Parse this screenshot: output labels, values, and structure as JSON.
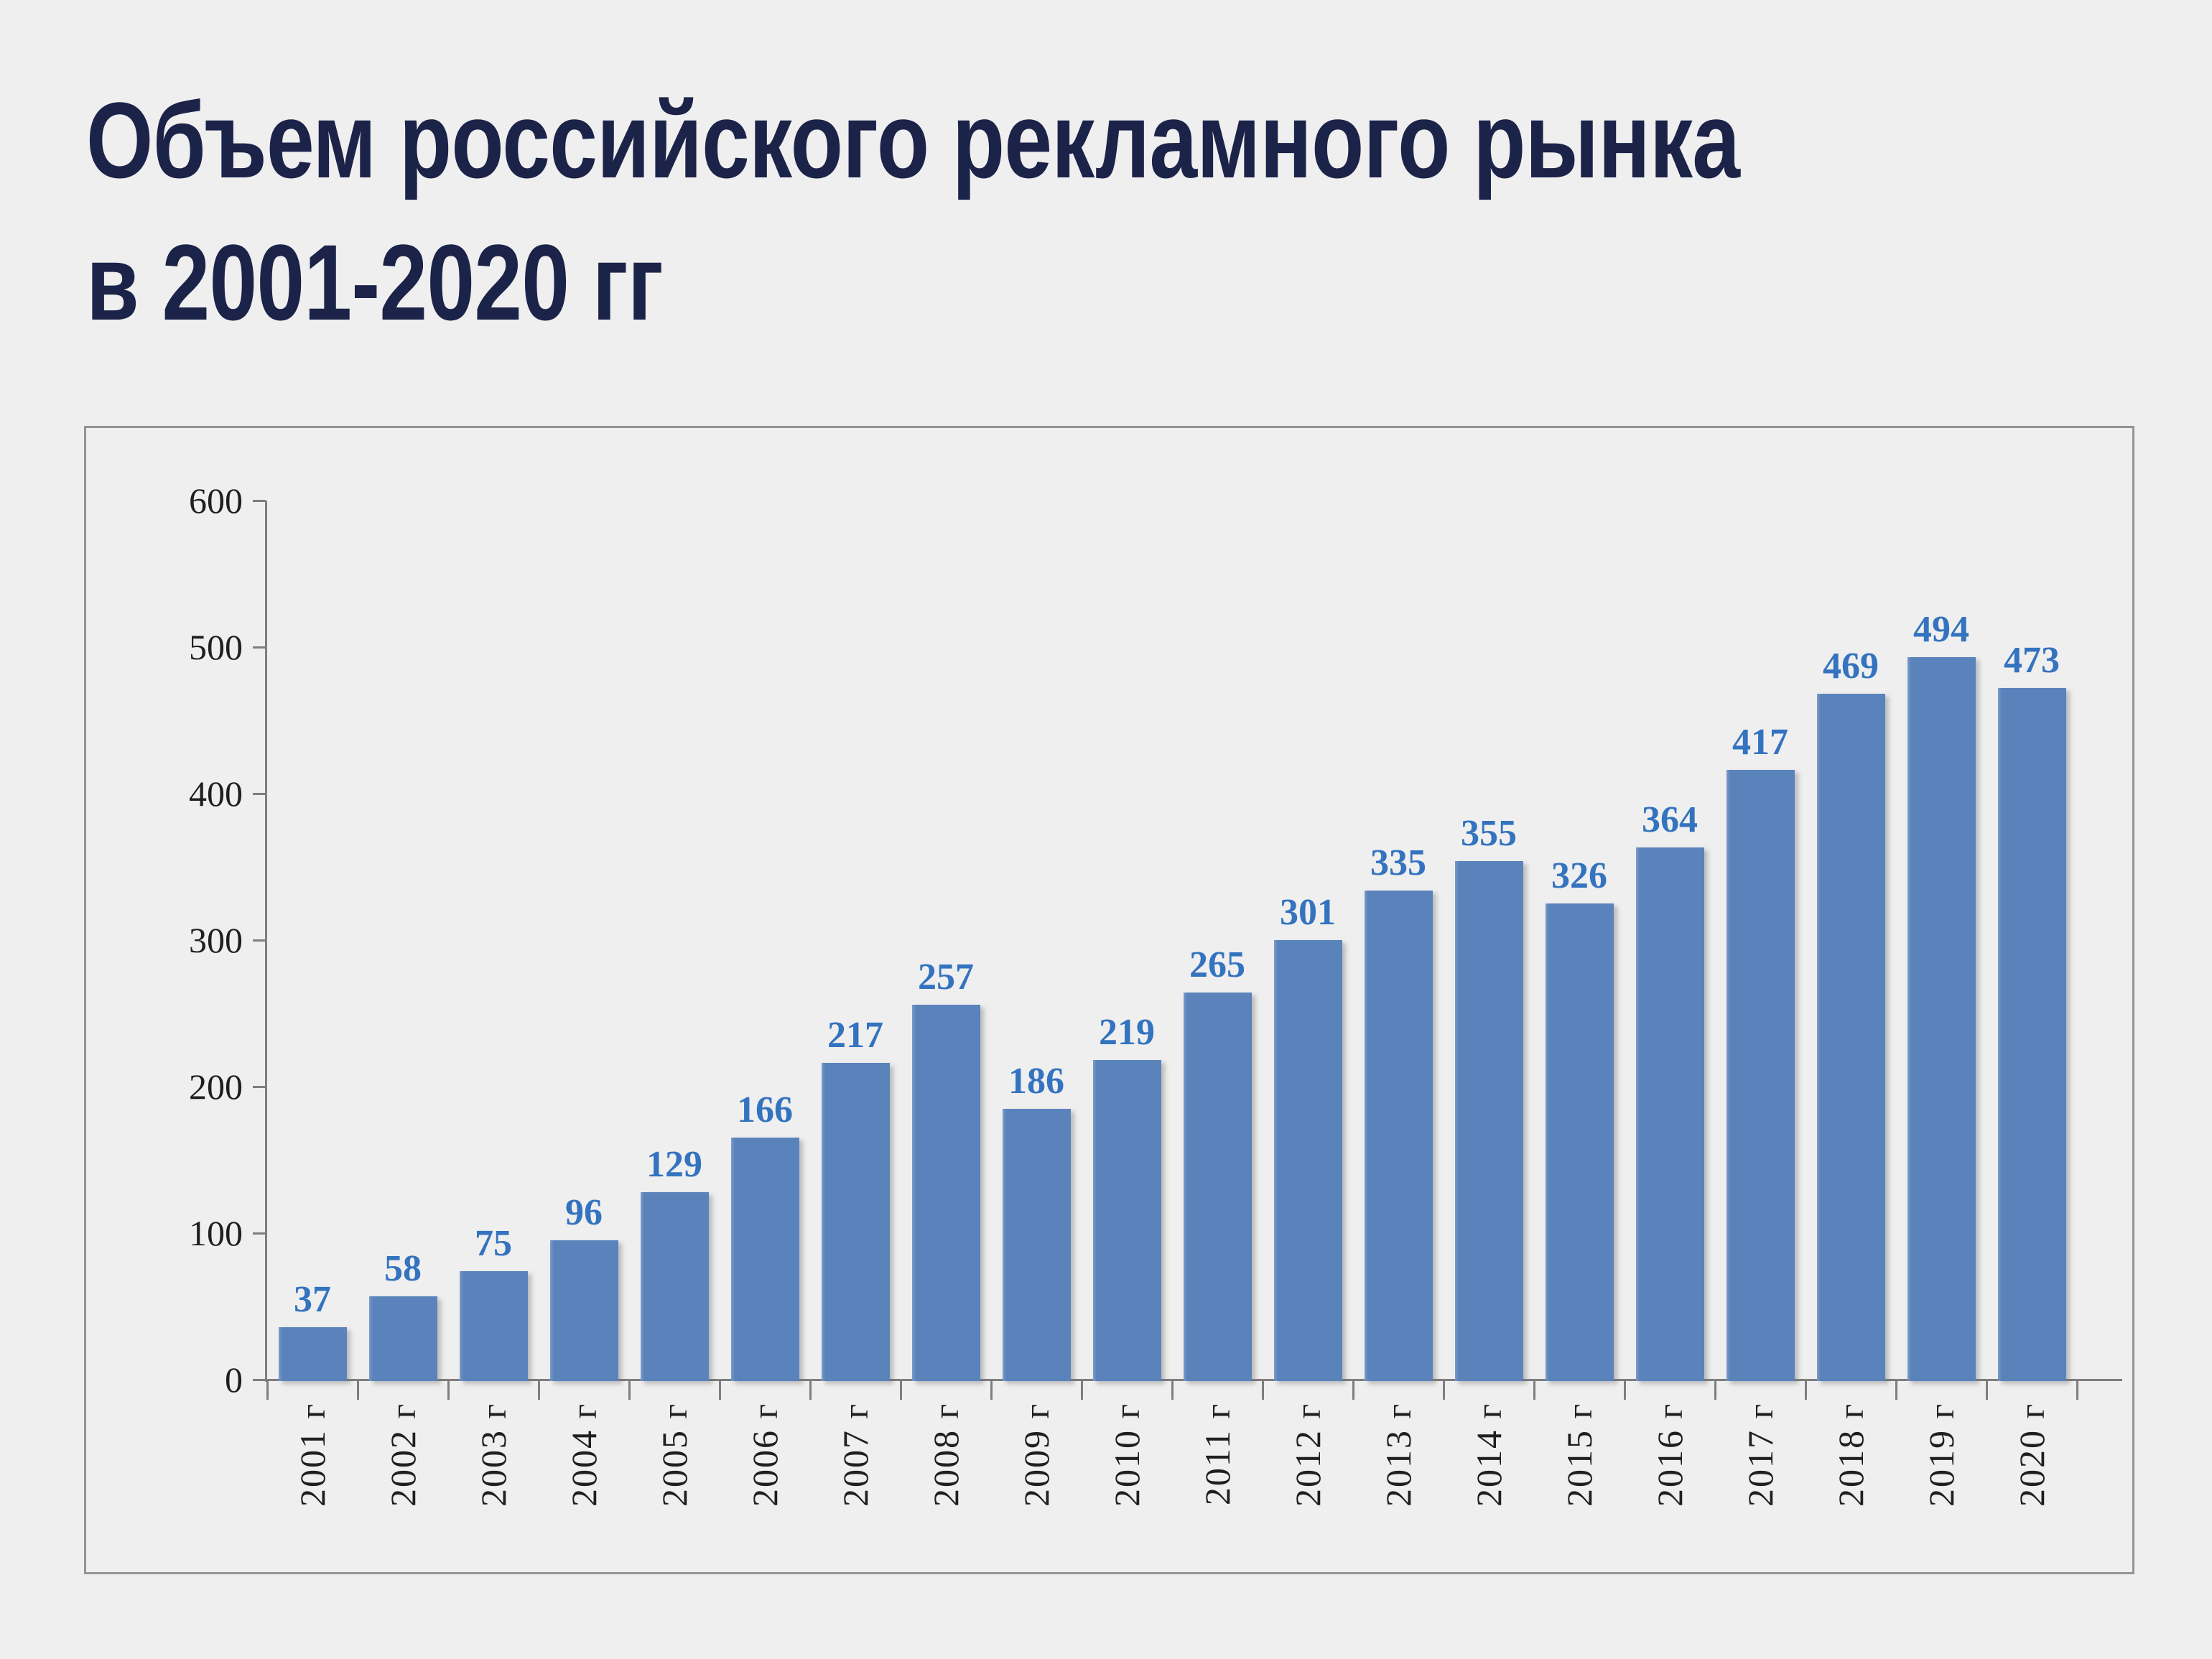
{
  "page": {
    "background": "#efefef"
  },
  "header": {
    "title_line1": "Объем российского рекламного рынка",
    "title_line2": "в 2001-2020 гг",
    "title_color": "#1c2349"
  },
  "chart_data": {
    "type": "bar",
    "title": "Объем российского рекламного рынка в 2001-2020 гг",
    "categories": [
      "2001 г",
      "2002 г",
      "2003 г",
      "2004 г",
      "2005 г",
      "2006 г",
      "2007 г",
      "2008 г",
      "2009 г",
      "2010 г",
      "2011 г",
      "2012 г",
      "2013 г",
      "2014 г",
      "2015 г",
      "2016 г",
      "2017 г",
      "2018 г",
      "2019 г",
      "2020 г"
    ],
    "values": [
      37,
      58,
      75,
      96,
      129,
      166,
      217,
      257,
      186,
      219,
      265,
      301,
      335,
      355,
      326,
      364,
      417,
      469,
      494,
      473
    ],
    "xlabel": "",
    "ylabel": "",
    "ylim": [
      0,
      600
    ],
    "yticks": [
      0,
      100,
      200,
      300,
      400,
      500,
      600
    ],
    "grid": false,
    "legend": "none",
    "data_labels": true,
    "bar_color": "#5b83bb",
    "value_label_color": "#3473bf",
    "axis_color": "#7e7e7e",
    "tick_label_color": "#1f1f1f",
    "frame_border_color": "#949494",
    "background_color": "#efefef"
  }
}
